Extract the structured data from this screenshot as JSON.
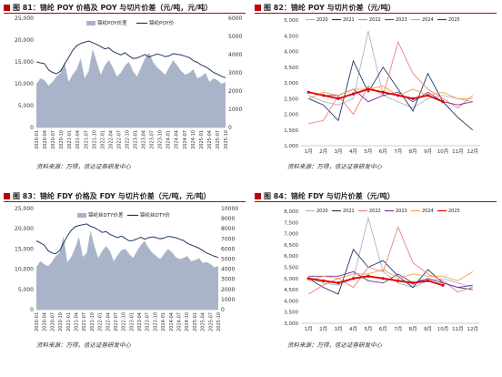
{
  "colors": {
    "accent": "#c00000",
    "area": "#aab4c8",
    "navy": "#1f3864"
  },
  "panels": [
    {
      "id": "p81",
      "title": "图 81：锦纶 POY 价格及 POY 与切片价差（元/吨，元/吨）",
      "source": "资料来源：万得，信达证券研发中心",
      "chart_data": {
        "type": "area",
        "legend": [
          "锦纶POY价差",
          "锦纶POY价"
        ],
        "yleft": {
          "min": 0,
          "max": 25000,
          "ticks": [
            "0",
            "5,000",
            "10,000",
            "15,000",
            "20,000",
            "25,000"
          ]
        },
        "yright": {
          "min": 0,
          "max": 6000,
          "ticks": [
            "0",
            "1000",
            "2000",
            "3000",
            "4000",
            "5000",
            "6000"
          ]
        },
        "xticks": [
          "2020-01",
          "2020-04",
          "2020-07",
          "2020-10",
          "2021-01",
          "2021-04",
          "2021-07",
          "2021-10",
          "2022-01",
          "2022-04",
          "2022-07",
          "2022-10",
          "2023-01",
          "2023-04",
          "2023-07",
          "2023-10",
          "2024-01",
          "2024-04",
          "2024-07",
          "2024-10",
          "2025-01",
          "2025-04",
          "2025-07",
          "2025-10"
        ],
        "series": [
          {
            "name": "锦纶POY价差",
            "axis": "right",
            "values": [
              2400,
              2700,
              2600,
              2300,
              2500,
              2800,
              3000,
              3600,
              2500,
              2900,
              3200,
              3800,
              2700,
              3100,
              4300,
              3600,
              2900,
              3400,
              3700,
              3300,
              2800,
              3000,
              3400,
              3600,
              3100,
              2800,
              3300,
              3800,
              4100,
              3600,
              3300,
              3100,
              2900,
              3300,
              3700,
              3400,
              3100,
              2900,
              3000,
              3200,
              2700,
              2800,
              3000,
              2500,
              2700,
              2600,
              2400,
              2500
            ]
          },
          {
            "name": "锦纶POY价",
            "axis": "left",
            "values": [
              15000,
              14800,
              14600,
              13200,
              12600,
              12300,
              12900,
              14500,
              16000,
              17600,
              18700,
              19200,
              19500,
              19800,
              19400,
              19000,
              18500,
              18000,
              18200,
              17400,
              17000,
              16600,
              17100,
              16400,
              15800,
              15900,
              16300,
              16700,
              16100,
              16500,
              16800,
              16600,
              16200,
              16400,
              16900,
              16700,
              16600,
              16300,
              16000,
              15300,
              14900,
              14300,
              13900,
              13300,
              12600,
              12200,
              11700,
              11400
            ]
          }
        ]
      }
    },
    {
      "id": "p82",
      "title": "图 82：锦纶 POY 与切片价差（元/吨）",
      "source": "资料来源：万得，信达证券研发中心",
      "chart_data": {
        "type": "line",
        "y": {
          "min": 1000,
          "max": 5000,
          "ticks": [
            "1,000",
            "1,500",
            "2,000",
            "2,500",
            "3,000",
            "3,500",
            "4,000",
            "4,500",
            "5,000"
          ]
        },
        "categories": [
          "1月",
          "2月",
          "3月",
          "4月",
          "5月",
          "6月",
          "7月",
          "8月",
          "9月",
          "10月",
          "11月",
          "12月"
        ],
        "series": [
          {
            "name": "2020",
            "color": "#aab4c8",
            "values": [
              2600,
              2400,
              2300,
              2500,
              4650,
              2600,
              2400,
              2200,
              2500,
              2600,
              2500,
              2400
            ]
          },
          {
            "name": "2021",
            "color": "#1f3864",
            "values": [
              2500,
              2300,
              1800,
              3700,
              2700,
              3500,
              2800,
              2100,
              3300,
              2400,
              1900,
              1500
            ]
          },
          {
            "name": "2022",
            "color": "#f08080",
            "values": [
              1700,
              1800,
              2600,
              2000,
              2900,
              2600,
              4300,
              3300,
              2800,
              2500,
              2200,
              2600
            ]
          },
          {
            "name": "2023",
            "color": "#7030a0",
            "values": [
              2700,
              2600,
              2600,
              2800,
              2400,
              2600,
              2700,
              2400,
              2700,
              2400,
              2300,
              2400
            ]
          },
          {
            "name": "2024",
            "color": "#f5a040",
            "values": [
              2500,
              2700,
              2600,
              2800,
              2800,
              2900,
              2600,
              2800,
              2600,
              2700,
              2500,
              2500
            ]
          },
          {
            "name": "2025",
            "color": "#e00000",
            "values": [
              2700,
              2600,
              2500,
              2650,
              2800,
              2700,
              2600,
              2500,
              2600,
              2400,
              null,
              null
            ]
          }
        ]
      }
    },
    {
      "id": "p83",
      "title": "图 83：锦纶 FDY 价格及 FDY 与切片价差（元/吨，元/吨）",
      "source": "资料来源：万得，信达证券研发中心",
      "chart_data": {
        "type": "area",
        "legend": [
          "锦纶丝DTY价差",
          "锦纶丝DTY价"
        ],
        "yleft": {
          "min": 0,
          "max": 25000,
          "ticks": [
            "0",
            "5,000",
            "10,000",
            "15,000",
            "20,000",
            "25,000"
          ]
        },
        "yright": {
          "min": 0,
          "max": 10000,
          "ticks": [
            "0",
            "1000",
            "2000",
            "3000",
            "4000",
            "5000",
            "6000",
            "7000",
            "8000",
            "9000",
            "10000"
          ]
        },
        "xticks": [
          "2020-01",
          "2020-04",
          "2020-07",
          "2020-10",
          "2021-01",
          "2021-04",
          "2021-07",
          "2021-10",
          "2022-01",
          "2022-04",
          "2022-07",
          "2022-10",
          "2023-01",
          "2023-04",
          "2023-07",
          "2023-10",
          "2024-01",
          "2024-04",
          "2024-07",
          "2024-10",
          "2025-01",
          "2025-04",
          "2025-07",
          "2025-10"
        ],
        "series": [
          {
            "name": "锦纶丝DTY价差",
            "axis": "right",
            "values": [
              4200,
              4800,
              4500,
              4300,
              4700,
              5300,
              5600,
              7300,
              4700,
              5200,
              6100,
              7200,
              5200,
              5600,
              7800,
              6300,
              5100,
              5800,
              6300,
              5800,
              4800,
              5400,
              5900,
              6000,
              5500,
              5100,
              5800,
              6400,
              6800,
              6100,
              5600,
              5300,
              5000,
              5500,
              6000,
              5700,
              5200,
              5000,
              5100,
              5300,
              4800,
              4900,
              5100,
              4600,
              4700,
              4500,
              4200,
              4300
            ]
          },
          {
            "name": "锦纶丝DTY价",
            "axis": "left",
            "values": [
              17000,
              16500,
              16000,
              14600,
              14000,
              13800,
              14600,
              16400,
              18200,
              19600,
              20500,
              20800,
              21000,
              21200,
              20600,
              20300,
              19700,
              19100,
              19300,
              18600,
              18200,
              17800,
              18200,
              17600,
              17000,
              17100,
              17500,
              17900,
              17400,
              17800,
              18000,
              17800,
              17500,
              17700,
              18100,
              18000,
              17800,
              17400,
              17100,
              16400,
              16000,
              15600,
              15200,
              14600,
              14000,
              13600,
              13200,
              12900
            ]
          }
        ]
      }
    },
    {
      "id": "p84",
      "title": "图 84：锦纶 FDY 与切片价差（元/吨）",
      "source": "资料来源：万得，信达证券研发中心",
      "chart_data": {
        "type": "line",
        "y": {
          "min": 3000,
          "max": 8000,
          "ticks": [
            "3,000",
            "3,500",
            "4,000",
            "4,500",
            "5,000",
            "5,500",
            "6,000",
            "6,500",
            "7,000",
            "7,500",
            "8,000"
          ]
        },
        "categories": [
          "1月",
          "2月",
          "3月",
          "4月",
          "5月",
          "6月",
          "7月",
          "8月",
          "9月",
          "10月",
          "11月",
          "12月"
        ],
        "series": [
          {
            "name": "2020",
            "color": "#aab4c8",
            "values": [
              5000,
              4800,
              4700,
              5000,
              7700,
              5300,
              4800,
              4600,
              4900,
              5000,
              4800,
              4600
            ]
          },
          {
            "name": "2021",
            "color": "#1f3864",
            "values": [
              5000,
              4600,
              4300,
              6300,
              5500,
              5800,
              5100,
              4600,
              5400,
              4800,
              4600,
              4500
            ]
          },
          {
            "name": "2022",
            "color": "#f08080",
            "values": [
              4300,
              4700,
              5000,
              4600,
              5500,
              5300,
              7300,
              5700,
              5200,
              4900,
              4400,
              4600
            ]
          },
          {
            "name": "2023",
            "color": "#7030a0",
            "values": [
              5100,
              5100,
              5100,
              5300,
              4900,
              4800,
              5200,
              4800,
              5000,
              4800,
              4600,
              4700
            ]
          },
          {
            "name": "2024",
            "color": "#f5a040",
            "values": [
              4900,
              5100,
              5000,
              5200,
              5200,
              5400,
              5000,
              5200,
              5100,
              5100,
              4900,
              5300
            ]
          },
          {
            "name": "2025",
            "color": "#e00000",
            "values": [
              5000,
              4900,
              4800,
              5000,
              5100,
              5000,
              4900,
              4800,
              4900,
              4700,
              null,
              null
            ]
          }
        ]
      }
    }
  ]
}
